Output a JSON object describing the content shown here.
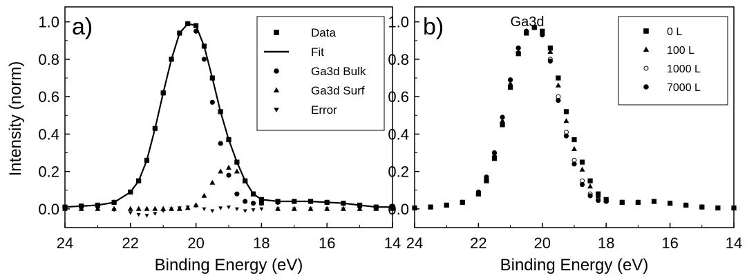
{
  "figure": {
    "panel_a_letter": "a)",
    "panel_b_letter": "b)",
    "ylabel": "Intensity (norm)",
    "xlabel_a": "Binding Energy (eV)",
    "xlabel_b": "Binding Energy (eV)",
    "annotation_b": "Ga3d"
  },
  "chart_data": [
    {
      "type": "scatter",
      "panel": "a)",
      "xlabel": "Binding Energy (eV)",
      "ylabel": "Intensity (norm)",
      "xlim": [
        24,
        14
      ],
      "ylim": [
        -0.1,
        1.08
      ],
      "x_reversed": true,
      "xticks": [
        24,
        22,
        20,
        18,
        16,
        14
      ],
      "yticks": [
        0.0,
        0.2,
        0.4,
        0.6,
        0.8,
        1.0
      ],
      "grid": false,
      "legend_position": "top-right",
      "x": [
        24.0,
        23.5,
        23.0,
        22.5,
        22.0,
        21.75,
        21.5,
        21.25,
        21.0,
        20.75,
        20.5,
        20.25,
        20.0,
        19.75,
        19.5,
        19.25,
        19.0,
        18.75,
        18.5,
        18.25,
        18.0,
        17.5,
        17.0,
        16.5,
        16.0,
        15.5,
        15.0,
        14.5,
        14.0
      ],
      "series": [
        {
          "name": "Data",
          "marker": "square",
          "values": [
            0.01,
            0.015,
            0.02,
            0.035,
            0.09,
            0.15,
            0.26,
            0.43,
            0.62,
            0.8,
            0.94,
            0.99,
            0.98,
            0.87,
            0.7,
            0.52,
            0.37,
            0.25,
            0.15,
            0.08,
            0.05,
            0.04,
            0.04,
            0.04,
            0.035,
            0.03,
            0.02,
            0.01,
            0.01
          ]
        },
        {
          "name": "Fit",
          "marker": "line",
          "values": [
            0.01,
            0.015,
            0.02,
            0.035,
            0.09,
            0.15,
            0.26,
            0.43,
            0.62,
            0.8,
            0.94,
            0.99,
            0.98,
            0.87,
            0.7,
            0.52,
            0.37,
            0.25,
            0.15,
            0.08,
            0.05,
            0.04,
            0.04,
            0.04,
            0.035,
            0.03,
            0.02,
            0.01,
            0.01
          ]
        },
        {
          "name": "Ga3d Bulk",
          "marker": "circle",
          "values": [
            0.01,
            0.015,
            0.02,
            0.035,
            0.09,
            0.15,
            0.26,
            0.43,
            0.62,
            0.8,
            0.94,
            0.99,
            0.95,
            0.8,
            0.57,
            0.35,
            0.18,
            0.08,
            0.04,
            0.03,
            0.03,
            0.035,
            0.04,
            0.04,
            0.035,
            0.03,
            0.02,
            0.01,
            0.01
          ]
        },
        {
          "name": "Ga3d Surf",
          "marker": "triangle-up",
          "values": [
            0.0,
            0.0,
            0.0,
            0.0,
            0.0,
            0.0,
            0.0,
            0.0,
            0.0,
            0.0,
            0.0,
            0.005,
            0.02,
            0.07,
            0.14,
            0.2,
            0.22,
            0.2,
            0.15,
            0.08,
            0.03,
            0.0,
            0.0,
            0.0,
            0.0,
            0.0,
            0.0,
            0.0,
            0.0
          ]
        },
        {
          "name": "Error",
          "marker": "triangle-down",
          "values": [
            0.0,
            0.0,
            0.0,
            -0.005,
            -0.02,
            -0.03,
            -0.035,
            -0.025,
            -0.01,
            0.0,
            0.005,
            0.01,
            0.015,
            0.0,
            -0.01,
            0.005,
            0.01,
            0.0,
            -0.01,
            -0.005,
            0.0,
            0.0,
            0.0,
            0.0,
            0.0,
            0.0,
            0.0,
            0.0,
            0.0
          ]
        }
      ]
    },
    {
      "type": "scatter",
      "panel": "b)",
      "xlabel": "Binding Energy (eV)",
      "ylabel": "",
      "xlim": [
        24,
        14
      ],
      "ylim": [
        -0.1,
        1.08
      ],
      "x_reversed": true,
      "xticks": [
        24,
        22,
        20,
        18,
        16,
        14
      ],
      "yticks": [
        0.0,
        0.2,
        0.4,
        0.6,
        0.8,
        1.0
      ],
      "grid": false,
      "legend_position": "top-right",
      "annotation": "Ga3d",
      "x": [
        24.0,
        23.5,
        23.0,
        22.5,
        22.0,
        21.75,
        21.5,
        21.25,
        21.0,
        20.75,
        20.5,
        20.25,
        20.0,
        19.75,
        19.5,
        19.25,
        19.0,
        18.75,
        18.5,
        18.25,
        18.0,
        17.5,
        17.0,
        16.5,
        16.0,
        15.5,
        15.0,
        14.5,
        14.0
      ],
      "series": [
        {
          "name": "0 L",
          "marker": "square",
          "values": [
            0.005,
            0.01,
            0.02,
            0.035,
            0.08,
            0.15,
            0.27,
            0.45,
            0.65,
            0.83,
            0.94,
            0.97,
            0.95,
            0.86,
            0.7,
            0.52,
            0.37,
            0.25,
            0.15,
            0.08,
            0.05,
            0.035,
            0.035,
            0.04,
            0.03,
            0.02,
            0.01,
            0.005,
            0.005
          ]
        },
        {
          "name": "100 L",
          "marker": "triangle-up",
          "values": [
            0.005,
            0.01,
            0.02,
            0.035,
            0.085,
            0.16,
            0.29,
            0.47,
            0.67,
            0.84,
            0.95,
            0.97,
            0.94,
            0.84,
            0.66,
            0.47,
            0.32,
            0.21,
            0.12,
            0.07,
            0.045,
            0.035,
            0.035,
            0.04,
            0.03,
            0.02,
            0.01,
            0.005,
            0.005
          ]
        },
        {
          "name": "1000 L",
          "marker": "circle-open",
          "values": [
            0.005,
            0.01,
            0.02,
            0.035,
            0.09,
            0.17,
            0.3,
            0.49,
            0.69,
            0.86,
            0.95,
            0.97,
            0.93,
            0.8,
            0.6,
            0.41,
            0.26,
            0.15,
            0.08,
            0.05,
            0.04,
            0.035,
            0.035,
            0.04,
            0.03,
            0.02,
            0.01,
            0.005,
            0.005
          ]
        },
        {
          "name": "7000 L",
          "marker": "circle",
          "values": [
            0.005,
            0.01,
            0.02,
            0.035,
            0.09,
            0.17,
            0.3,
            0.49,
            0.69,
            0.86,
            0.95,
            0.97,
            0.93,
            0.79,
            0.58,
            0.39,
            0.24,
            0.13,
            0.07,
            0.045,
            0.04,
            0.035,
            0.035,
            0.04,
            0.03,
            0.02,
            0.01,
            0.005,
            0.005
          ]
        }
      ]
    }
  ]
}
